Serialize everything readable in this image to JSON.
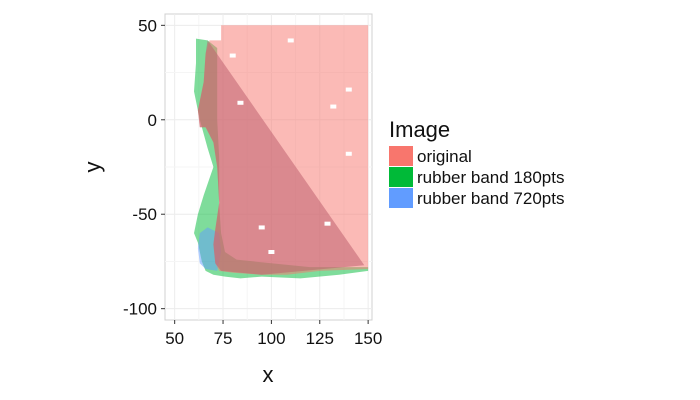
{
  "chart_data": {
    "type": "area",
    "title": "",
    "xlabel": "x",
    "ylabel": "y",
    "xlim": [
      45,
      152
    ],
    "ylim": [
      -106,
      56
    ],
    "x_ticks": [
      50,
      75,
      100,
      125,
      150
    ],
    "y_ticks": [
      50,
      0,
      -50,
      -100
    ],
    "grid": true,
    "legend": {
      "title": "Image",
      "placement": "right",
      "entries": [
        {
          "name": "original",
          "color": "#F8766D"
        },
        {
          "name": "rubber band 180pts",
          "color": "#00BA38"
        },
        {
          "name": "rubber band 720pts",
          "color": "#619CFF"
        }
      ]
    },
    "series": [
      {
        "name": "rubber band 180pts",
        "color": "#00BA38",
        "polygon": [
          [
            61,
            43
          ],
          [
            67,
            42
          ],
          [
            72,
            38
          ],
          [
            72,
            0
          ],
          [
            73,
            -20
          ],
          [
            73,
            -45
          ],
          [
            74,
            -60
          ],
          [
            76,
            -70
          ],
          [
            82,
            -74
          ],
          [
            100,
            -76
          ],
          [
            120,
            -78
          ],
          [
            135,
            -78
          ],
          [
            150,
            -78
          ],
          [
            150,
            -80
          ],
          [
            135,
            -82
          ],
          [
            115,
            -84
          ],
          [
            95,
            -83
          ],
          [
            84,
            -84
          ],
          [
            76,
            -83
          ],
          [
            70,
            -82
          ],
          [
            66,
            -80
          ],
          [
            64,
            -75
          ],
          [
            62,
            -65
          ],
          [
            60,
            -60
          ],
          [
            62,
            -50
          ],
          [
            65,
            -40
          ],
          [
            70,
            -25
          ],
          [
            67,
            -15
          ],
          [
            63,
            0
          ],
          [
            60,
            15
          ],
          [
            61,
            30
          ]
        ]
      },
      {
        "name": "rubber band 720pts",
        "color": "#619CFF",
        "polygon": [
          [
            63,
            -60
          ],
          [
            67,
            -57
          ],
          [
            73,
            -60
          ],
          [
            74,
            -70
          ],
          [
            72,
            -80
          ],
          [
            66,
            -79
          ],
          [
            63,
            -76
          ],
          [
            62,
            -68
          ]
        ]
      },
      {
        "name": "original",
        "color": "#F8766D",
        "polygon": [
          [
            74,
            50
          ],
          [
            150,
            50
          ],
          [
            150,
            -79
          ],
          [
            125,
            -80
          ],
          [
            108,
            -82
          ],
          [
            95,
            -82
          ],
          [
            80,
            -81
          ],
          [
            73,
            -80
          ],
          [
            71,
            -76
          ],
          [
            70,
            -66
          ],
          [
            71,
            -58
          ],
          [
            73,
            -44
          ],
          [
            72,
            -25
          ],
          [
            70,
            -12
          ],
          [
            66,
            -4
          ],
          [
            63,
            -4
          ],
          [
            62,
            5
          ],
          [
            65,
            20
          ],
          [
            66,
            35
          ],
          [
            68,
            42
          ],
          [
            74,
            42
          ]
        ]
      }
    ],
    "overlay": {
      "name": "darker triangle",
      "color": "#C06070",
      "polygon": [
        [
          67,
          42
        ],
        [
          148,
          -77
        ],
        [
          95,
          -82
        ],
        [
          74,
          -80
        ],
        [
          71,
          -76
        ],
        [
          70,
          -66
        ],
        [
          71,
          -58
        ],
        [
          73,
          -44
        ],
        [
          72,
          -25
        ],
        [
          70,
          -12
        ],
        [
          66,
          -4
        ],
        [
          63,
          -4
        ],
        [
          62,
          5
        ],
        [
          65,
          20
        ],
        [
          66,
          35
        ]
      ]
    },
    "holes": [
      [
        80,
        34
      ],
      [
        110,
        42
      ],
      [
        140,
        16
      ],
      [
        140,
        -18
      ],
      [
        132,
        7
      ],
      [
        129,
        -55
      ],
      [
        100,
        -70
      ],
      [
        84,
        9
      ],
      [
        95,
        -57
      ]
    ]
  }
}
